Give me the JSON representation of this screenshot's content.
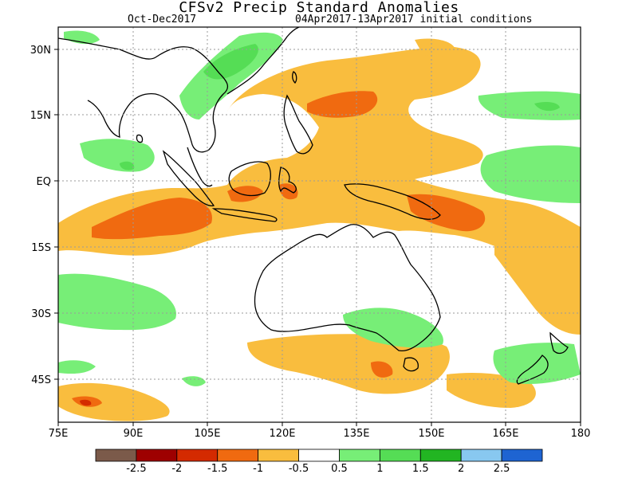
{
  "title": "CFSv2 Precip Standard Anomalies",
  "season": "Oct-Dec2017",
  "init": "04Apr2017-13Apr2017 initial conditions",
  "map": {
    "lon_range": [
      75,
      180
    ],
    "lat_range": [
      -53,
      35
    ],
    "x_ticks": [
      "75E",
      "90E",
      "105E",
      "120E",
      "135E",
      "150E",
      "165E",
      "180"
    ],
    "y_ticks": [
      "30N",
      "15N",
      "EQ",
      "15S",
      "30S",
      "45S"
    ]
  },
  "colorbar": {
    "labels": [
      "-2.5",
      "-2",
      "-1.5",
      "-1",
      "-0.5",
      "0.5",
      "1",
      "1.5",
      "2",
      "2.5"
    ],
    "colors": [
      "#7b5a4a",
      "#9e0000",
      "#d42a00",
      "#f06a10",
      "#f9bd3e",
      "#ffffff",
      "#77ee77",
      "#55dd55",
      "#22b522",
      "#88c8f0",
      "#1e64d2"
    ]
  },
  "colors": {
    "pos1": "#77ee77",
    "pos2": "#55dd55",
    "neg1": "#f9bd3e",
    "neg2": "#f06a10",
    "neg3": "#d42a00"
  }
}
